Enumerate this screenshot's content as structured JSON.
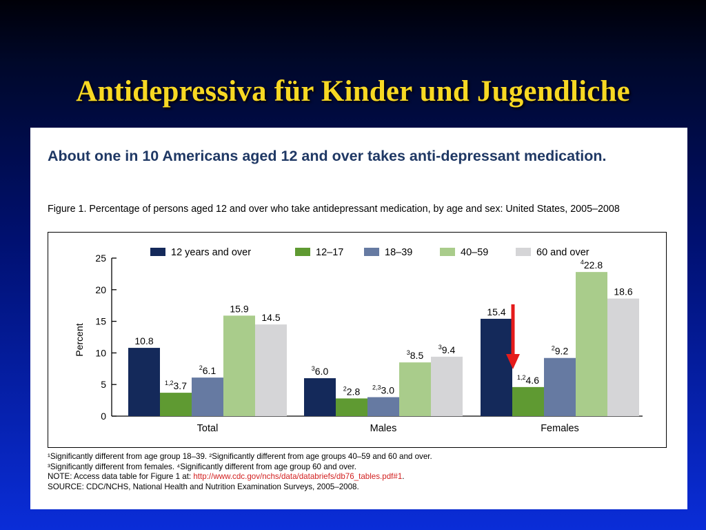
{
  "slide": {
    "title": "Antidepressiva für Kinder und Jugendliche"
  },
  "figure": {
    "headline": "About one in 10 Americans aged 12 and over takes anti-depressant medication.",
    "caption": "Figure 1. Percentage of persons aged 12 and over who take antidepressant medication, by age and sex: United States, 2005–2008",
    "footnotes": {
      "line1": "¹Significantly different from age group 18–39.  ²Significantly different from age groups 40–59 and 60 and over.",
      "line2": "³Significantly different from females.  ⁴Significantly different from age group 60 and over.",
      "note_prefix": "NOTE: Access data table for Figure 1 at: ",
      "note_link": "http://www.cdc.gov/nchs/data/databriefs/db76_tables.pdf#1",
      "note_suffix": ".",
      "source": "SOURCE: CDC/NCHS, National Health and Nutrition Examination Surveys, 2005–2008."
    }
  },
  "chart_data": {
    "type": "bar",
    "ylabel": "Percent",
    "ylim": [
      0,
      25
    ],
    "yticks": [
      0,
      5,
      10,
      15,
      20,
      25
    ],
    "grid": false,
    "legend_position": "top",
    "categories": [
      "Total",
      "Males",
      "Females"
    ],
    "series": [
      {
        "name": "12 years and over",
        "color": "#14295a",
        "values": [
          10.8,
          6.0,
          15.4
        ],
        "value_labels": [
          "10.8",
          "6.0",
          "15.4"
        ],
        "superscripts": [
          "",
          "3",
          ""
        ]
      },
      {
        "name": "12–17",
        "color": "#5f9a32",
        "values": [
          3.7,
          2.8,
          4.6
        ],
        "value_labels": [
          "3.7",
          "2.8",
          "4.6"
        ],
        "superscripts": [
          "1,2",
          "2",
          "1,2"
        ]
      },
      {
        "name": "18–39",
        "color": "#667aa2",
        "values": [
          6.1,
          3.0,
          9.2
        ],
        "value_labels": [
          "6.1",
          "3.0",
          "9.2"
        ],
        "superscripts": [
          "2",
          "2,3",
          "2"
        ]
      },
      {
        "name": "40–59",
        "color": "#a9cc8b",
        "values": [
          15.9,
          8.5,
          22.8
        ],
        "value_labels": [
          "15.9",
          "8.5",
          "22.8"
        ],
        "superscripts": [
          "",
          "3",
          "4"
        ]
      },
      {
        "name": "60 and over",
        "color": "#d5d5d7",
        "values": [
          14.5,
          9.4,
          18.6
        ],
        "value_labels": [
          "14.5",
          "9.4",
          "18.6"
        ],
        "superscripts": [
          "",
          "3",
          ""
        ]
      }
    ],
    "annotation": {
      "type": "arrow",
      "color": "#e51b1b",
      "points_to": {
        "category": "Females",
        "series": "12–17"
      }
    }
  }
}
